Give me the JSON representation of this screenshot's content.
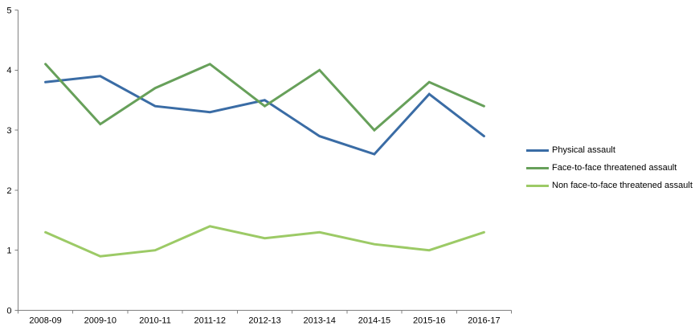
{
  "chart_data": {
    "type": "line",
    "title": "",
    "xlabel": "",
    "ylabel": "",
    "categories": [
      "2008-09",
      "2009-10",
      "2010-11",
      "2011-12",
      "2012-13",
      "2013-14",
      "2014-15",
      "2015-16",
      "2016-17"
    ],
    "series": [
      {
        "name": "Physical assault",
        "color": "#3A6CA5",
        "values": [
          3.8,
          3.9,
          3.4,
          3.3,
          3.5,
          2.9,
          2.6,
          3.6,
          2.9
        ]
      },
      {
        "name": "Face-to-face threatened assault",
        "color": "#67A05A",
        "values": [
          4.1,
          3.1,
          3.7,
          4.1,
          3.4,
          4.0,
          3.0,
          3.8,
          3.4
        ]
      },
      {
        "name": "Non face-to-face threatened assault",
        "color": "#9CCA66",
        "values": [
          1.3,
          0.9,
          1.0,
          1.4,
          1.2,
          1.3,
          1.1,
          1.0,
          1.3
        ]
      }
    ],
    "ylim": [
      0,
      5
    ],
    "yticks": [
      0,
      1,
      2,
      3,
      4,
      5
    ],
    "grid": false,
    "legend_position": "right",
    "axis_color": "#808080",
    "text_color": "#000000",
    "line_width": 3
  }
}
